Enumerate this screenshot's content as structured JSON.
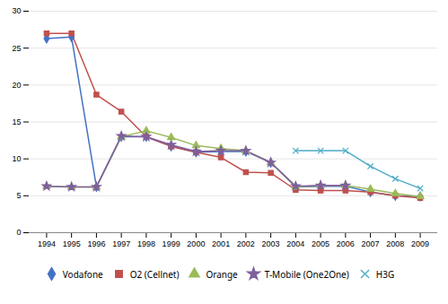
{
  "chart_data": {
    "type": "line",
    "x": [
      1994,
      1995,
      1996,
      1997,
      1998,
      1999,
      2000,
      2001,
      2002,
      2003,
      2004,
      2005,
      2006,
      2007,
      2008,
      2009
    ],
    "series": [
      {
        "name": "Vodafone",
        "color": "#4472c4",
        "marker": "diamond",
        "values": [
          26.3,
          26.5,
          6.2,
          13.0,
          13.0,
          11.7,
          10.9,
          11.0,
          11.0,
          9.5,
          6.2,
          6.3,
          6.3,
          5.5,
          5.0,
          4.9
        ]
      },
      {
        "name": "O2 (Cellnet)",
        "color": "#c0504d",
        "marker": "square",
        "values": [
          27.0,
          27.0,
          18.7,
          16.4,
          13.0,
          11.7,
          10.9,
          10.2,
          8.2,
          8.1,
          5.8,
          5.7,
          5.7,
          5.5,
          5.0,
          4.7
        ]
      },
      {
        "name": "Orange",
        "color": "#9bbb59",
        "marker": "triangle",
        "values": [
          6.3,
          6.2,
          6.2,
          13.0,
          13.8,
          12.9,
          11.8,
          11.4,
          11.1,
          9.5,
          6.2,
          6.4,
          6.4,
          5.9,
          5.3,
          4.9
        ]
      },
      {
        "name": "T-Mobile (One2One)",
        "color": "#7f5f9e",
        "marker": "star",
        "values": [
          6.3,
          6.2,
          6.2,
          13.1,
          13.0,
          11.9,
          11.0,
          11.1,
          11.1,
          9.5,
          6.3,
          6.4,
          6.4,
          null,
          null,
          null
        ]
      },
      {
        "name": "H3G",
        "color": "#4bacc6",
        "marker": "times",
        "values": [
          null,
          null,
          null,
          null,
          null,
          null,
          null,
          null,
          null,
          null,
          11.1,
          11.1,
          11.1,
          9.0,
          7.3,
          6.0
        ]
      }
    ],
    "xlim": [
      1993.3,
      2009.7
    ],
    "xticks": [
      1994,
      1995,
      1996,
      1997,
      1998,
      1999,
      2000,
      2001,
      2002,
      2003,
      2004,
      2005,
      2006,
      2007,
      2008,
      2009
    ],
    "ylim": [
      0,
      30
    ],
    "yticks": [
      0,
      5,
      10,
      15,
      20,
      25,
      30
    ],
    "grid": "y",
    "legend": "bottom"
  }
}
